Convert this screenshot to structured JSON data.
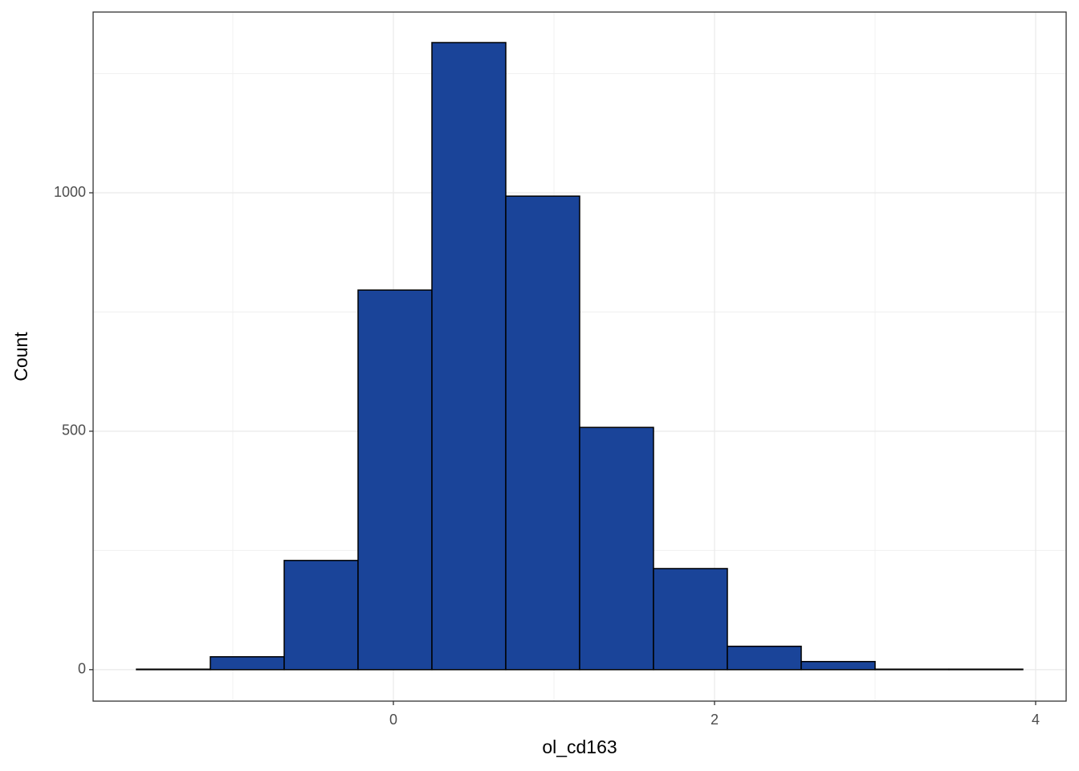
{
  "chart_data": {
    "type": "histogram",
    "x_label": "ol_cd163",
    "y_label": "Count",
    "bins": [
      -1.6,
      -1.14,
      -0.68,
      -0.22,
      0.24,
      0.7,
      1.16,
      1.62,
      2.08,
      2.54,
      3.0,
      3.46,
      3.92
    ],
    "counts": [
      1,
      27,
      229,
      796,
      1315,
      993,
      508,
      212,
      49,
      17,
      1,
      1
    ],
    "color": "#1a4499",
    "edge_color": "#000000",
    "xlim": [
      -1.87,
      4.19
    ],
    "xticks": [
      0,
      2,
      4
    ],
    "ylim": [
      -66,
      1379
    ],
    "yticks": [
      0,
      500,
      1000
    ],
    "grid": true
  }
}
